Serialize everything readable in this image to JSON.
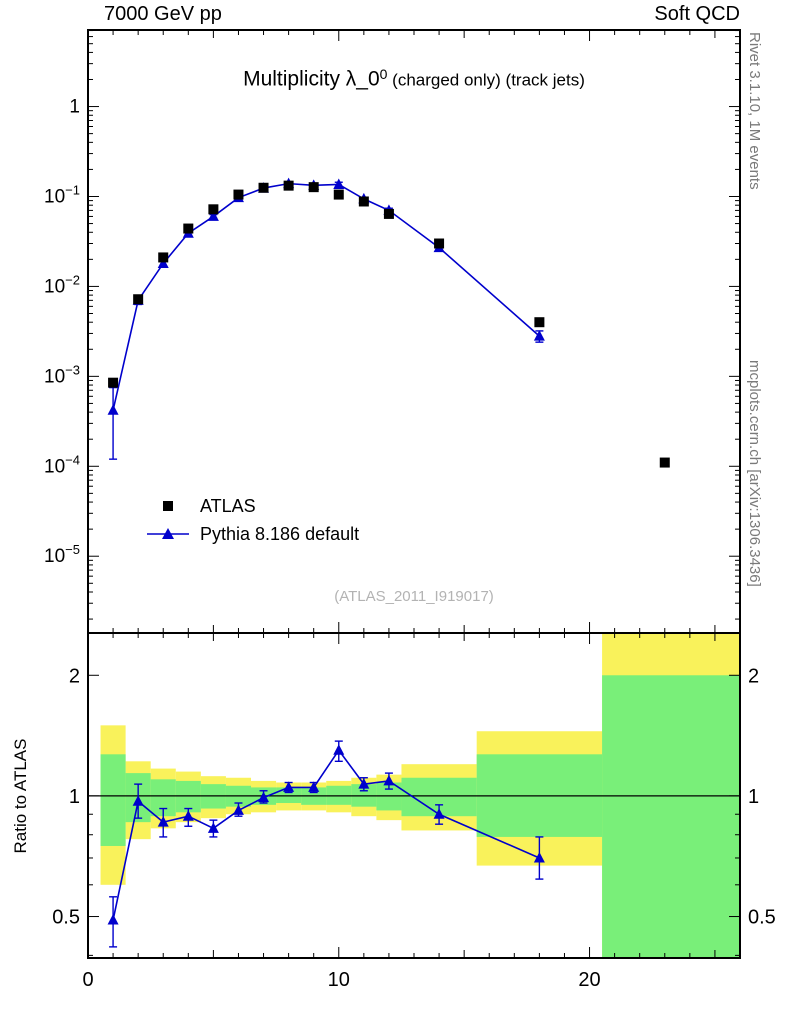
{
  "header": {
    "left": "7000 GeV pp",
    "right": "Soft QCD"
  },
  "title": {
    "text": "Multiplicity λ_0",
    "sup": "0",
    "suffix": " (charged only) (track jets)"
  },
  "watermark": "(ATLAS_2011_I919017)",
  "side_labels": {
    "top_right": "Rivet 3.1.10,  1M events",
    "bottom_right": "mcplots.cern.ch [arXiv:1306.3436]"
  },
  "ratio_ylabel": "Ratio to ATLAS",
  "legend": [
    {
      "label": "ATLAS",
      "marker": "square"
    },
    {
      "label": "Pythia 8.186 default",
      "marker": "triangle-line"
    }
  ],
  "colors": {
    "data": "#000000",
    "mc": "#0000cc",
    "band_outer": "#f9f25b",
    "band_inner": "#79ef79"
  },
  "chart_data": [
    {
      "type": "line",
      "title": "Multiplicity λ_0^0 (charged only) (track jets)",
      "xlabel": "",
      "ylabel": "",
      "xlim": [
        0,
        26
      ],
      "ylim": [
        1.4e-06,
        7.1
      ],
      "yscale": "log",
      "x_ticks": [
        {
          "v": 0,
          "label": "0"
        },
        {
          "v": 10,
          "label": "10"
        },
        {
          "v": 20,
          "label": "20"
        }
      ],
      "y_ticks_exponents": [
        0,
        -1,
        -2,
        -3,
        -4,
        -5
      ],
      "grid": false,
      "legend_position": "lower-left-inside",
      "series": [
        {
          "name": "ATLAS",
          "marker": "square",
          "x": [
            1,
            2,
            3,
            4,
            5,
            6,
            7,
            8,
            9,
            10,
            11,
            12,
            14,
            18,
            23
          ],
          "y": [
            0.00085,
            0.0072,
            0.021,
            0.044,
            0.072,
            0.105,
            0.125,
            0.132,
            0.127,
            0.105,
            0.088,
            0.064,
            0.03,
            0.004,
            0.00011
          ]
        },
        {
          "name": "Pythia 8.186 default",
          "marker": "triangle",
          "line": true,
          "x": [
            1,
            2,
            3,
            4,
            5,
            6,
            7,
            8,
            9,
            10,
            11,
            12,
            14,
            18
          ],
          "y": [
            0.00042,
            0.007,
            0.018,
            0.039,
            0.06,
            0.097,
            0.124,
            0.139,
            0.133,
            0.136,
            0.094,
            0.07,
            0.027,
            0.0028
          ],
          "y_lo": [
            0.00012,
            0.0063,
            0.0165,
            0.037,
            0.057,
            0.093,
            0.12,
            0.135,
            0.129,
            0.128,
            0.09,
            0.066,
            0.025,
            0.0024
          ],
          "y_hi": [
            0.00075,
            0.0077,
            0.0195,
            0.041,
            0.063,
            0.101,
            0.128,
            0.143,
            0.137,
            0.144,
            0.098,
            0.074,
            0.029,
            0.0032
          ]
        }
      ]
    },
    {
      "type": "ratio",
      "ylabel": "Ratio to ATLAS",
      "xlim": [
        0,
        26
      ],
      "ylim": [
        0.394,
        2.55
      ],
      "yscale": "log",
      "reference_line": 1,
      "y_ticks": [
        {
          "v": 0.5,
          "label": "0.5"
        },
        {
          "v": 1,
          "label": "1"
        },
        {
          "v": 2,
          "label": "2"
        }
      ],
      "bands": [
        {
          "x0": 0.5,
          "x1": 1.5,
          "outer": [
            0.6,
            1.5
          ],
          "inner": [
            0.75,
            1.27
          ]
        },
        {
          "x0": 1.5,
          "x1": 2.5,
          "outer": [
            0.78,
            1.22
          ],
          "inner": [
            0.86,
            1.14
          ]
        },
        {
          "x0": 2.5,
          "x1": 3.5,
          "outer": [
            0.83,
            1.17
          ],
          "inner": [
            0.89,
            1.1
          ]
        },
        {
          "x0": 3.5,
          "x1": 4.5,
          "outer": [
            0.86,
            1.15
          ],
          "inner": [
            0.91,
            1.09
          ]
        },
        {
          "x0": 4.5,
          "x1": 5.5,
          "outer": [
            0.88,
            1.12
          ],
          "inner": [
            0.93,
            1.07
          ]
        },
        {
          "x0": 5.5,
          "x1": 6.5,
          "outer": [
            0.9,
            1.11
          ],
          "inner": [
            0.94,
            1.06
          ]
        },
        {
          "x0": 6.5,
          "x1": 7.5,
          "outer": [
            0.91,
            1.09
          ],
          "inner": [
            0.95,
            1.05
          ]
        },
        {
          "x0": 7.5,
          "x1": 8.5,
          "outer": [
            0.92,
            1.08
          ],
          "inner": [
            0.96,
            1.05
          ]
        },
        {
          "x0": 8.5,
          "x1": 9.5,
          "outer": [
            0.92,
            1.08
          ],
          "inner": [
            0.95,
            1.05
          ]
        },
        {
          "x0": 9.5,
          "x1": 10.5,
          "outer": [
            0.91,
            1.09
          ],
          "inner": [
            0.95,
            1.06
          ]
        },
        {
          "x0": 10.5,
          "x1": 11.5,
          "outer": [
            0.89,
            1.11
          ],
          "inner": [
            0.94,
            1.07
          ]
        },
        {
          "x0": 11.5,
          "x1": 12.5,
          "outer": [
            0.87,
            1.13
          ],
          "inner": [
            0.92,
            1.08
          ]
        },
        {
          "x0": 12.5,
          "x1": 15.5,
          "outer": [
            0.82,
            1.2
          ],
          "inner": [
            0.89,
            1.11
          ]
        },
        {
          "x0": 15.5,
          "x1": 20.5,
          "outer": [
            0.67,
            1.45
          ],
          "inner": [
            0.79,
            1.27
          ]
        },
        {
          "x0": 20.5,
          "x1": 26.0,
          "outer": [
            0.394,
            2.55
          ],
          "inner": [
            0.394,
            2.0
          ]
        }
      ],
      "points": {
        "x": [
          1,
          2,
          3,
          4,
          5,
          6,
          7,
          8,
          9,
          10,
          11,
          12,
          14,
          18
        ],
        "y": [
          0.49,
          0.97,
          0.86,
          0.89,
          0.83,
          0.92,
          0.99,
          1.05,
          1.05,
          1.3,
          1.07,
          1.09,
          0.9,
          0.7
        ],
        "y_lo": [
          0.42,
          0.88,
          0.79,
          0.84,
          0.79,
          0.89,
          0.96,
          1.02,
          1.02,
          1.22,
          1.03,
          1.04,
          0.85,
          0.62
        ],
        "y_hi": [
          0.56,
          1.07,
          0.93,
          0.93,
          0.87,
          0.96,
          1.03,
          1.08,
          1.08,
          1.37,
          1.11,
          1.14,
          0.95,
          0.79
        ]
      }
    }
  ]
}
